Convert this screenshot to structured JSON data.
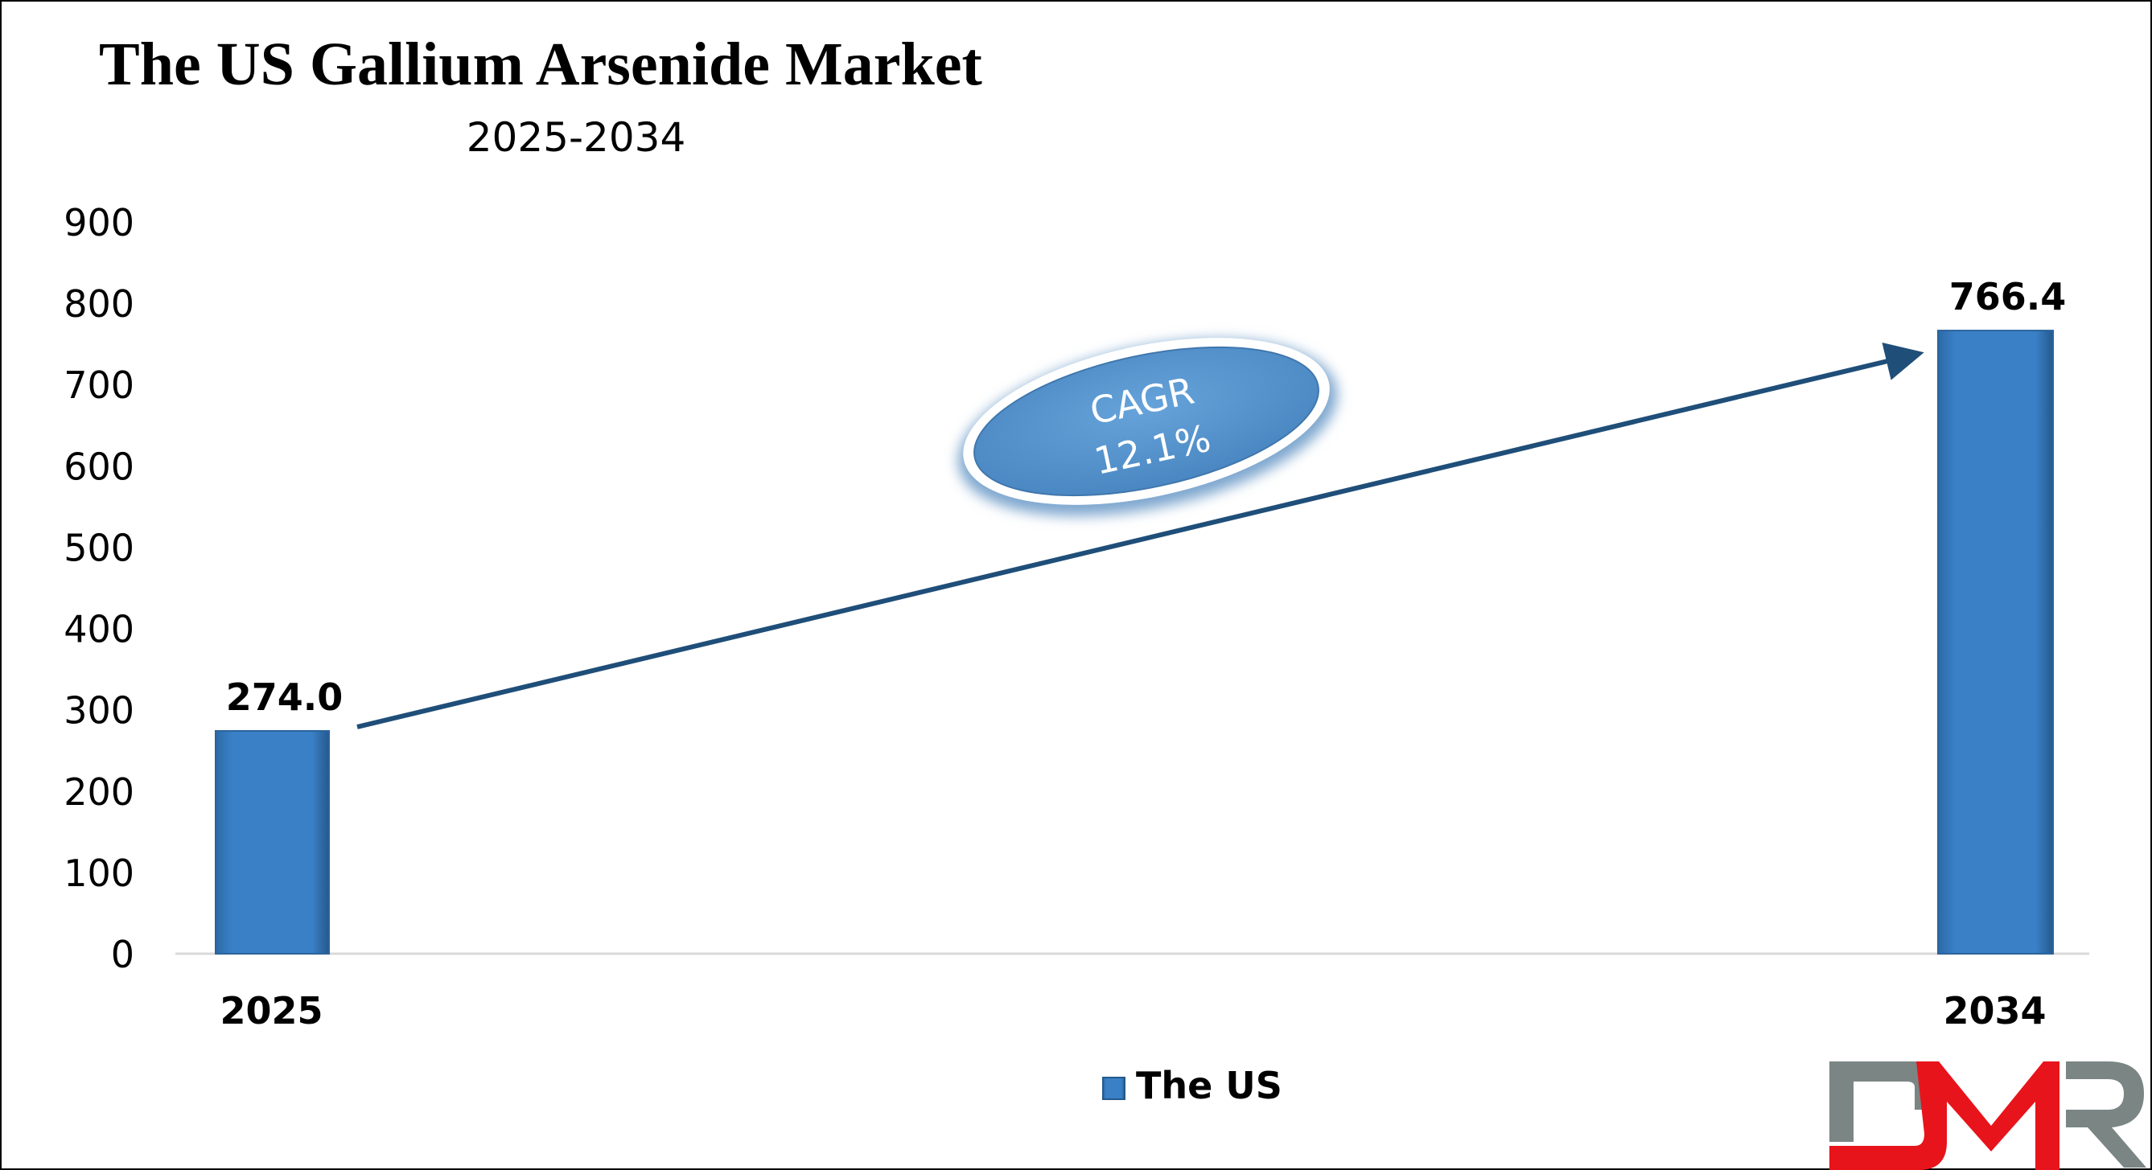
{
  "chart_data": {
    "type": "bar",
    "title": "The US Gallium Arsenide Market",
    "subtitle": "2025-2034",
    "categories": [
      "2025",
      "2034"
    ],
    "series": [
      {
        "name": "The US",
        "values": [
          274.0,
          766.4
        ]
      }
    ],
    "data_labels": [
      "274.0",
      "766.4"
    ],
    "ylim": [
      0,
      900
    ],
    "y_ticks": [
      0,
      100,
      200,
      300,
      400,
      500,
      600,
      700,
      800,
      900
    ],
    "y_tick_labels": [
      "0",
      "100",
      "200",
      "300",
      "400",
      "500",
      "600",
      "700",
      "800",
      "900"
    ],
    "grid": false,
    "legend_position": "bottom",
    "annotation": {
      "line1": "CAGR",
      "line2": "12.1%"
    },
    "colors": {
      "bar": "#3a7fc4",
      "arrow": "#1f4e79",
      "ellipse": "#5b9bd5"
    }
  },
  "logo": {
    "text": "DMR",
    "colors": {
      "gray": "#7a8584",
      "red": "#e8141b"
    }
  }
}
